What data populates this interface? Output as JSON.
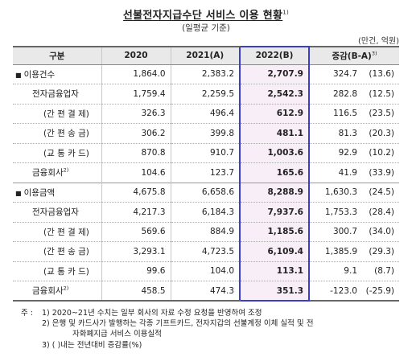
{
  "title": "선불전자지급수단 서비스 이용 현황",
  "title_footnote": "1)",
  "subtitle": "(일평균 기준)",
  "unit": "(만건, 억원)",
  "headers": {
    "category": "구분",
    "y2020": "2020",
    "y2021": "2021(A)",
    "y2022": "2022(B)",
    "change": "증감(B-A)",
    "change_footnote": "3)"
  },
  "rows": [
    {
      "label": "이용건수",
      "level": 0,
      "bullet": "■",
      "v2020": "1,864.0",
      "v2021": "2,383.2",
      "v2022": "2,707.9",
      "delta": "324.7",
      "pct": "(13.6)"
    },
    {
      "label": "전자금융업자",
      "level": 1,
      "v2020": "1,759.4",
      "v2021": "2,259.5",
      "v2022": "2,542.3",
      "delta": "282.8",
      "pct": "(12.5)"
    },
    {
      "label": "(간 편 결 제)",
      "level": 2,
      "v2020": "326.3",
      "v2021": "496.4",
      "v2022": "612.9",
      "delta": "116.5",
      "pct": "(23.5)"
    },
    {
      "label": "(간 편 송 금)",
      "level": 2,
      "v2020": "306.2",
      "v2021": "399.8",
      "v2022": "481.1",
      "delta": "81.3",
      "pct": "(20.3)"
    },
    {
      "label": "(교 통 카 드)",
      "level": 2,
      "v2020": "870.8",
      "v2021": "910.7",
      "v2022": "1,003.6",
      "delta": "92.9",
      "pct": "(10.2)"
    },
    {
      "label": "금융회사",
      "footnote": "2)",
      "level": 1,
      "v2020": "104.6",
      "v2021": "123.7",
      "v2022": "165.6",
      "delta": "41.9",
      "pct": "(33.9)"
    },
    {
      "label": "이용금액",
      "level": 0,
      "bullet": "■",
      "v2020": "4,675.8",
      "v2021": "6,658.6",
      "v2022": "8,288.9",
      "delta": "1,630.3",
      "pct": "(24.5)"
    },
    {
      "label": "전자금융업자",
      "level": 1,
      "v2020": "4,217.3",
      "v2021": "6,184.3",
      "v2022": "7,937.6",
      "delta": "1,753.3",
      "pct": "(28.4)"
    },
    {
      "label": "(간 편 결 제)",
      "level": 2,
      "v2020": "569.6",
      "v2021": "884.9",
      "v2022": "1,185.6",
      "delta": "300.7",
      "pct": "(34.0)"
    },
    {
      "label": "(간 편 송 금)",
      "level": 2,
      "v2020": "3,293.1",
      "v2021": "4,723.5",
      "v2022": "6,109.4",
      "delta": "1,385.9",
      "pct": "(29.3)"
    },
    {
      "label": "(교 통 카 드)",
      "level": 2,
      "v2020": "99.6",
      "v2021": "104.0",
      "v2022": "113.1",
      "delta": "9.1",
      "pct": "(8.7)"
    },
    {
      "label": "금융회사",
      "footnote": "2)",
      "level": 1,
      "v2020": "458.5",
      "v2021": "474.3",
      "v2022": "351.3",
      "delta": "-123.0",
      "pct": "(-25.9)"
    }
  ],
  "notes": {
    "prefix": "주 :",
    "n1": "1) 2020~21년 수치는 일부 회사의 자료 수정 요청을 반영하여 조정",
    "n2a": "2) 은행 및 카드사가 발행하는 각종 기프트카드, 전자지갑의 선불계정 이체 실적 및 전",
    "n2b": "자화폐지급 서비스 이용실적",
    "n3": "3) ( )내는 전년대비 증감률(%)"
  },
  "colors": {
    "highlight_border": "#3a3ec8",
    "highlight_fill": "#f7eef7",
    "header_fill": "#e9e9e9"
  }
}
